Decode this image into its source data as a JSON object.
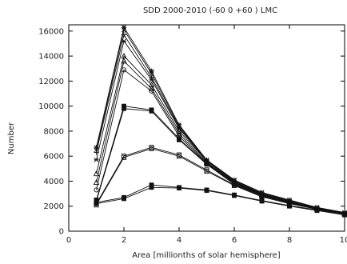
{
  "chart_data": {
    "type": "line",
    "title": "SDD 2000-2010 (-60 0 +60 ) LMC",
    "xlabel": "Area [millionths of solar hemisphere]",
    "ylabel": "Number",
    "xlim": [
      0,
      10
    ],
    "ylim": [
      0,
      16500
    ],
    "xticks": [
      0,
      2,
      4,
      6,
      8,
      10
    ],
    "yticks": [
      0,
      2000,
      4000,
      6000,
      8000,
      10000,
      12000,
      14000,
      16000
    ],
    "x": [
      1,
      2,
      3,
      4,
      5,
      6,
      7,
      8,
      9,
      10
    ],
    "grid": false,
    "series": [
      {
        "marker": "star",
        "values": [
          6700,
          16300,
          12800,
          8500,
          5700,
          4100,
          3100,
          2500,
          1900,
          1500
        ]
      },
      {
        "marker": "cross",
        "values": [
          6500,
          16100,
          12600,
          8400,
          5700,
          4050,
          3050,
          2450,
          1900,
          1450
        ]
      },
      {
        "marker": "plus",
        "values": [
          6300,
          15700,
          12300,
          8300,
          5650,
          4000,
          3000,
          2400,
          1850,
          1450
        ]
      },
      {
        "marker": "asterisk",
        "values": [
          5700,
          15200,
          12100,
          8200,
          5600,
          3950,
          2950,
          2400,
          1850,
          1400
        ]
      },
      {
        "marker": "triangle",
        "values": [
          4600,
          14000,
          11700,
          8000,
          5600,
          3950,
          2950,
          2350,
          1800,
          1400
        ]
      },
      {
        "marker": "triangle",
        "values": [
          3900,
          13600,
          11400,
          7800,
          5500,
          3900,
          2900,
          2350,
          1800,
          1400
        ]
      },
      {
        "marker": "circle",
        "values": [
          3300,
          12900,
          11200,
          7600,
          5450,
          3850,
          2900,
          2300,
          1800,
          1400
        ]
      },
      {
        "marker": "filled-square",
        "values": [
          2500,
          10000,
          9700,
          7400,
          5400,
          3800,
          2850,
          2300,
          1800,
          1400
        ]
      },
      {
        "marker": "filled-square",
        "values": [
          2400,
          9800,
          9600,
          7300,
          5350,
          3750,
          2800,
          2250,
          1750,
          1350
        ]
      },
      {
        "marker": "square",
        "values": [
          2200,
          6000,
          6700,
          6100,
          4900,
          3700,
          2800,
          2250,
          1750,
          1350
        ]
      },
      {
        "marker": "square",
        "values": [
          2100,
          5900,
          6600,
          6000,
          4800,
          3650,
          2750,
          2200,
          1750,
          1350
        ]
      },
      {
        "marker": "filled-square",
        "values": [
          2300,
          2700,
          3700,
          3500,
          3300,
          2900,
          2450,
          2050,
          1700,
          1350
        ]
      },
      {
        "marker": "filled-square",
        "values": [
          2200,
          2600,
          3500,
          3450,
          3250,
          2850,
          2400,
          2000,
          1650,
          1300
        ]
      }
    ]
  }
}
